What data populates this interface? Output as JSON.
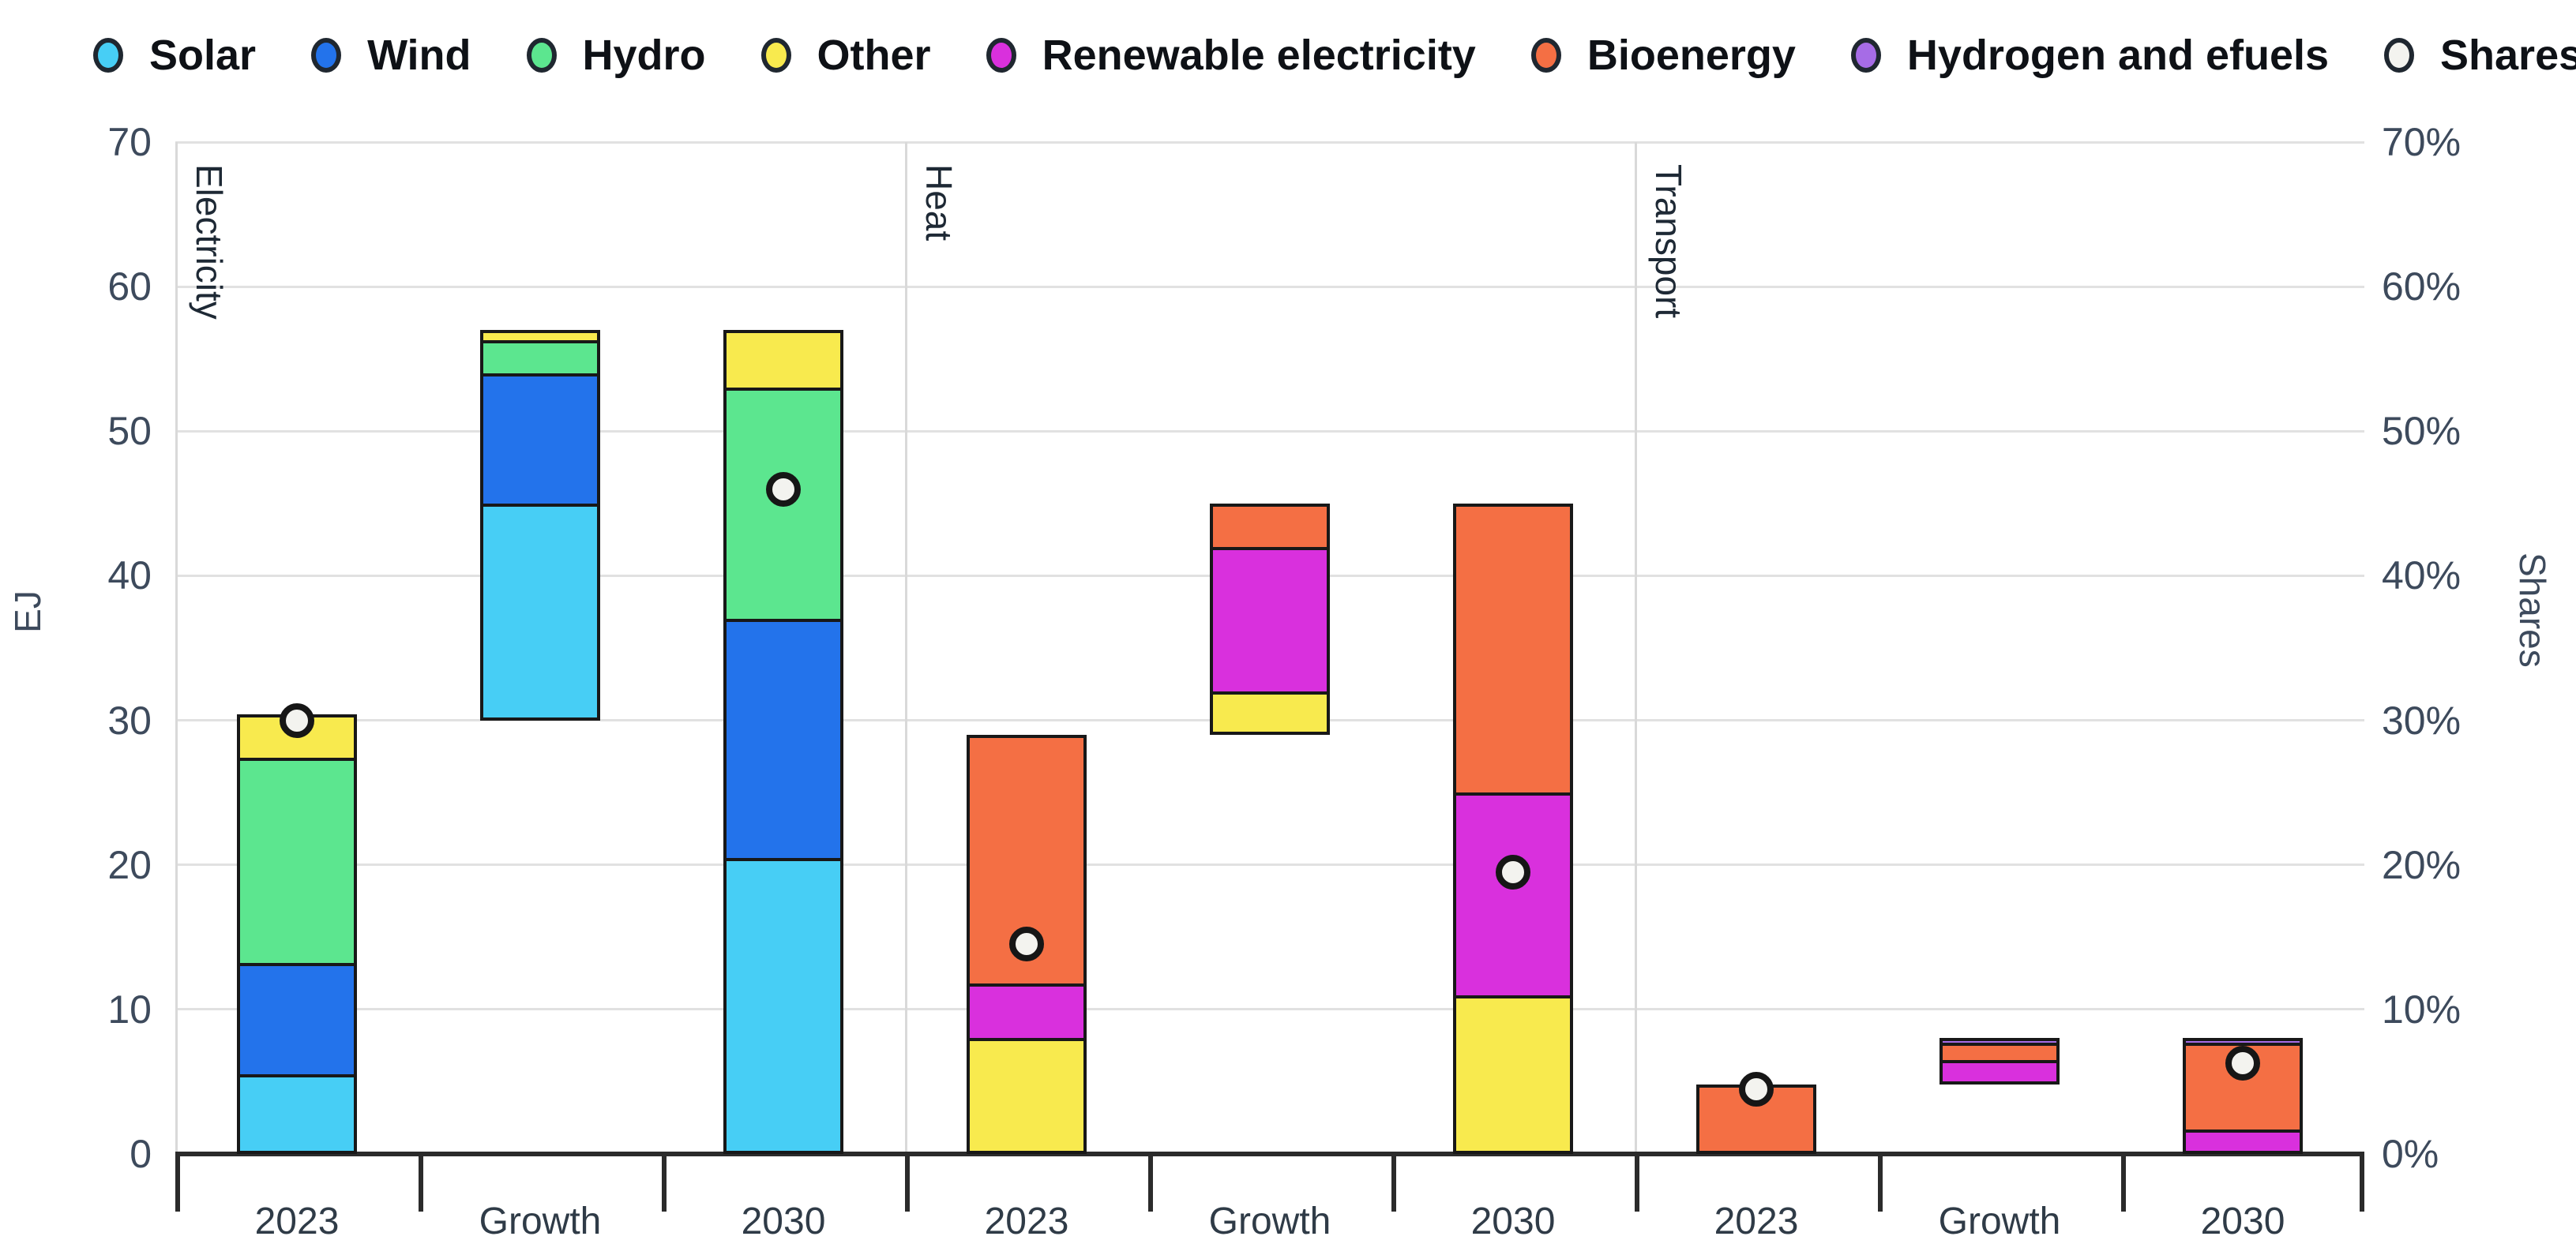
{
  "chart_data": {
    "type": "bar",
    "stacked": true,
    "title": "",
    "left_axis_label": "EJ",
    "right_axis_label": "Shares",
    "ylim": [
      0,
      70
    ],
    "grid": true,
    "legend_position": "top",
    "y_ticks": [
      "0",
      "10",
      "20",
      "30",
      "40",
      "50",
      "60",
      "70"
    ],
    "y_tick_values": [
      0,
      10,
      20,
      30,
      40,
      50,
      60,
      70
    ],
    "right_tick_labels": [
      "0%",
      "10%",
      "20%",
      "30%",
      "40%",
      "50%",
      "60%",
      "70%"
    ],
    "legend": [
      {
        "name": "Solar",
        "color": "#47CEF5"
      },
      {
        "name": "Wind",
        "color": "#2373EB"
      },
      {
        "name": "Hydro",
        "color": "#5CE68F"
      },
      {
        "name": "Other",
        "color": "#F8EA4E"
      },
      {
        "name": "Renewable electricity",
        "color": "#D930DD"
      },
      {
        "name": "Bioenergy",
        "color": "#F46F44"
      },
      {
        "name": "Hydrogen and efuels",
        "color": "#A66CE6"
      },
      {
        "name": "Shares",
        "color": "#F3F3EF"
      }
    ],
    "series_colors": {
      "Solar": "#47CEF5",
      "Wind": "#2373EB",
      "Hydro": "#5CE68F",
      "Other": "#F8EA4E",
      "Renewable electricity": "#D930DD",
      "Bioenergy": "#F46F44",
      "Hydrogen and efuels": "#A66CE6",
      "Shares": "#F3F3EF"
    },
    "groups": [
      {
        "name": "Electricity",
        "bars": [
          {
            "category": "2023",
            "base": 0,
            "segments": [
              {
                "series": "Solar",
                "value": 5.5
              },
              {
                "series": "Wind",
                "value": 7.7
              },
              {
                "series": "Hydro",
                "value": 14.2
              },
              {
                "series": "Other",
                "value": 3.0
              }
            ],
            "total": 30.4,
            "share_pct": 30
          },
          {
            "category": "Growth",
            "base": 30,
            "segments": [
              {
                "series": "Solar",
                "value": 15.0
              },
              {
                "series": "Wind",
                "value": 9.0
              },
              {
                "series": "Hydro",
                "value": 2.3
              },
              {
                "series": "Other",
                "value": 0.7
              }
            ],
            "total": 57,
            "share_pct": null
          },
          {
            "category": "2030",
            "base": 0,
            "segments": [
              {
                "series": "Solar",
                "value": 20.5
              },
              {
                "series": "Wind",
                "value": 16.5
              },
              {
                "series": "Hydro",
                "value": 16.0
              },
              {
                "series": "Other",
                "value": 4.0
              }
            ],
            "total": 57,
            "share_pct": 46
          }
        ]
      },
      {
        "name": "Heat",
        "bars": [
          {
            "category": "2023",
            "base": 0,
            "segments": [
              {
                "series": "Other",
                "value": 8.0
              },
              {
                "series": "Renewable electricity",
                "value": 3.8
              },
              {
                "series": "Bioenergy",
                "value": 17.2
              }
            ],
            "total": 29,
            "share_pct": 14.5
          },
          {
            "category": "Growth",
            "base": 29,
            "segments": [
              {
                "series": "Other",
                "value": 3.0
              },
              {
                "series": "Renewable electricity",
                "value": 10.0
              },
              {
                "series": "Bioenergy",
                "value": 3.0
              }
            ],
            "total": 45,
            "share_pct": null
          },
          {
            "category": "2030",
            "base": 0,
            "segments": [
              {
                "series": "Other",
                "value": 11.0
              },
              {
                "series": "Renewable electricity",
                "value": 14.0
              },
              {
                "series": "Bioenergy",
                "value": 20.0
              }
            ],
            "total": 45,
            "share_pct": 19.5
          }
        ]
      },
      {
        "name": "Transport",
        "bars": [
          {
            "category": "2023",
            "base": 0,
            "segments": [
              {
                "series": "Bioenergy",
                "value": 4.8
              }
            ],
            "total": 4.8,
            "share_pct": 4.5
          },
          {
            "category": "Growth",
            "base": 4.8,
            "segments": [
              {
                "series": "Renewable electricity",
                "value": 1.7
              },
              {
                "series": "Bioenergy",
                "value": 1.2
              },
              {
                "series": "Hydrogen and efuels",
                "value": 0.3
              }
            ],
            "total": 8,
            "share_pct": null
          },
          {
            "category": "2030",
            "base": 0,
            "segments": [
              {
                "series": "Renewable electricity",
                "value": 1.7
              },
              {
                "series": "Bioenergy",
                "value": 6.0
              },
              {
                "series": "Hydrogen and efuels",
                "value": 0.3
              }
            ],
            "total": 8,
            "share_pct": 6.3
          }
        ]
      }
    ]
  }
}
